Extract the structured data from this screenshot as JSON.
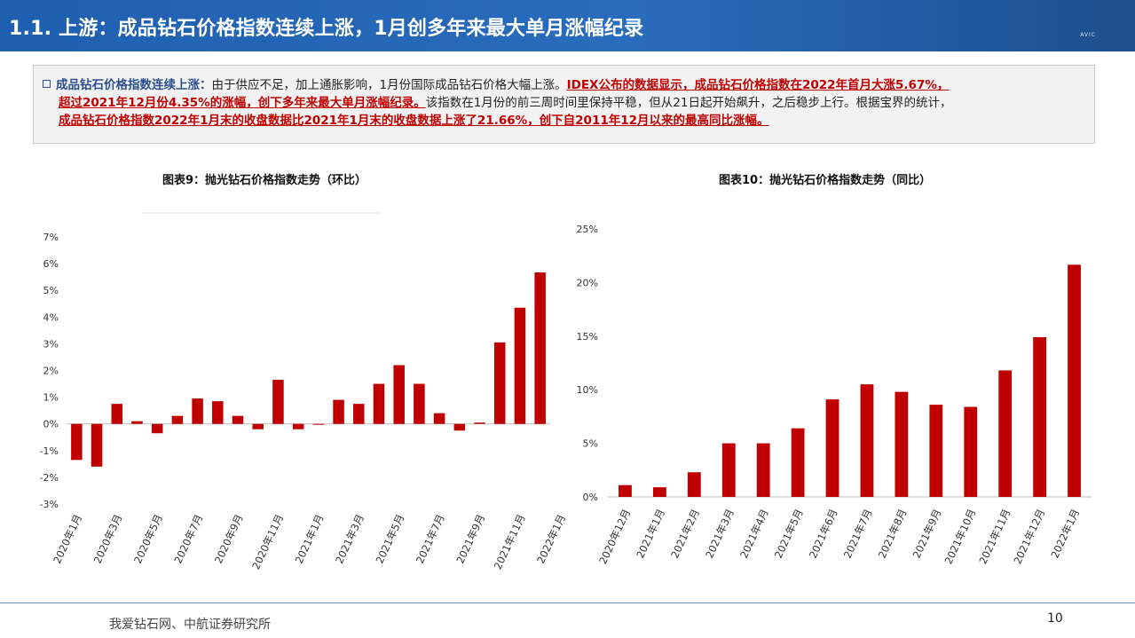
{
  "header": {
    "title": "1.1. 上游：成品钻石价格指数连续上涨，1月创多年来最大单月涨幅纪录",
    "logo": "AVIC"
  },
  "note": {
    "lead": "成品钻石价格指数连续上涨：",
    "text1": "由于供应不足，加上通胀影响，1月份国际成品钻石价格大幅上涨。",
    "red1": "IDEX公布的数据显示，成品钻石价格指数在2022年首月大涨5.67%，",
    "red2": "超过2021年12月份4.35%的涨幅，创下多年来最大单月涨幅纪录。",
    "text2": "该指数在1月份的前三周时间里保持平稳，但从21日起开始飙升，之后稳步上行。根据宝界的统计，",
    "red3": "成品钻石价格指数2022年1月末的收盘数据比2021年1月末的收盘数据上涨了21.66%，创下自2011年12月以来的最高同比涨幅。"
  },
  "colors": {
    "bar": "#c00000",
    "title_bar": "#1f5fb0",
    "lead": "#2b4f8c"
  },
  "chart_data": [
    {
      "type": "bar",
      "title": "图表9：抛光钻石价格指数走势（环比）",
      "tick_labels": [
        "2020年1月",
        "2020年3月",
        "2020年5月",
        "2020年7月",
        "2020年9月",
        "2020年11月",
        "2021年1月",
        "2021年3月",
        "2021年5月",
        "2021年7月",
        "2021年9月",
        "2021年11月",
        "2022年1月"
      ],
      "values": [
        -1.35,
        -1.6,
        0.75,
        0.1,
        -0.35,
        0.3,
        0.95,
        0.85,
        0.3,
        -0.2,
        1.65,
        -0.2,
        0.0,
        0.9,
        0.75,
        1.5,
        2.2,
        1.5,
        0.4,
        -0.25,
        0.05,
        3.05,
        4.35,
        5.67
      ],
      "y_ticks": [
        "7%",
        "6%",
        "5%",
        "4%",
        "3%",
        "2%",
        "1%",
        "0%",
        "-1%",
        "-2%",
        "-3%"
      ],
      "ylim": [
        -3,
        7
      ]
    },
    {
      "type": "bar",
      "title": "图表10：抛光钻石价格指数走势（同比）",
      "categories": [
        "2020年12月",
        "2021年1月",
        "2021年2月",
        "2021年3月",
        "2021年4月",
        "2021年5月",
        "2021年6月",
        "2021年7月",
        "2021年8月",
        "2021年9月",
        "2021年10月",
        "2021年11月",
        "2021年12月",
        "2022年1月"
      ],
      "values": [
        1.1,
        0.9,
        2.3,
        5.0,
        5.0,
        6.4,
        9.1,
        10.5,
        9.8,
        8.6,
        8.4,
        11.8,
        14.9,
        21.66
      ],
      "y_ticks": [
        "25%",
        "20%",
        "15%",
        "10%",
        "5%",
        "0%"
      ],
      "ylim": [
        0,
        25
      ]
    }
  ],
  "footer": {
    "source": "我爱钻石网、中航证券研究所",
    "page": "10"
  }
}
